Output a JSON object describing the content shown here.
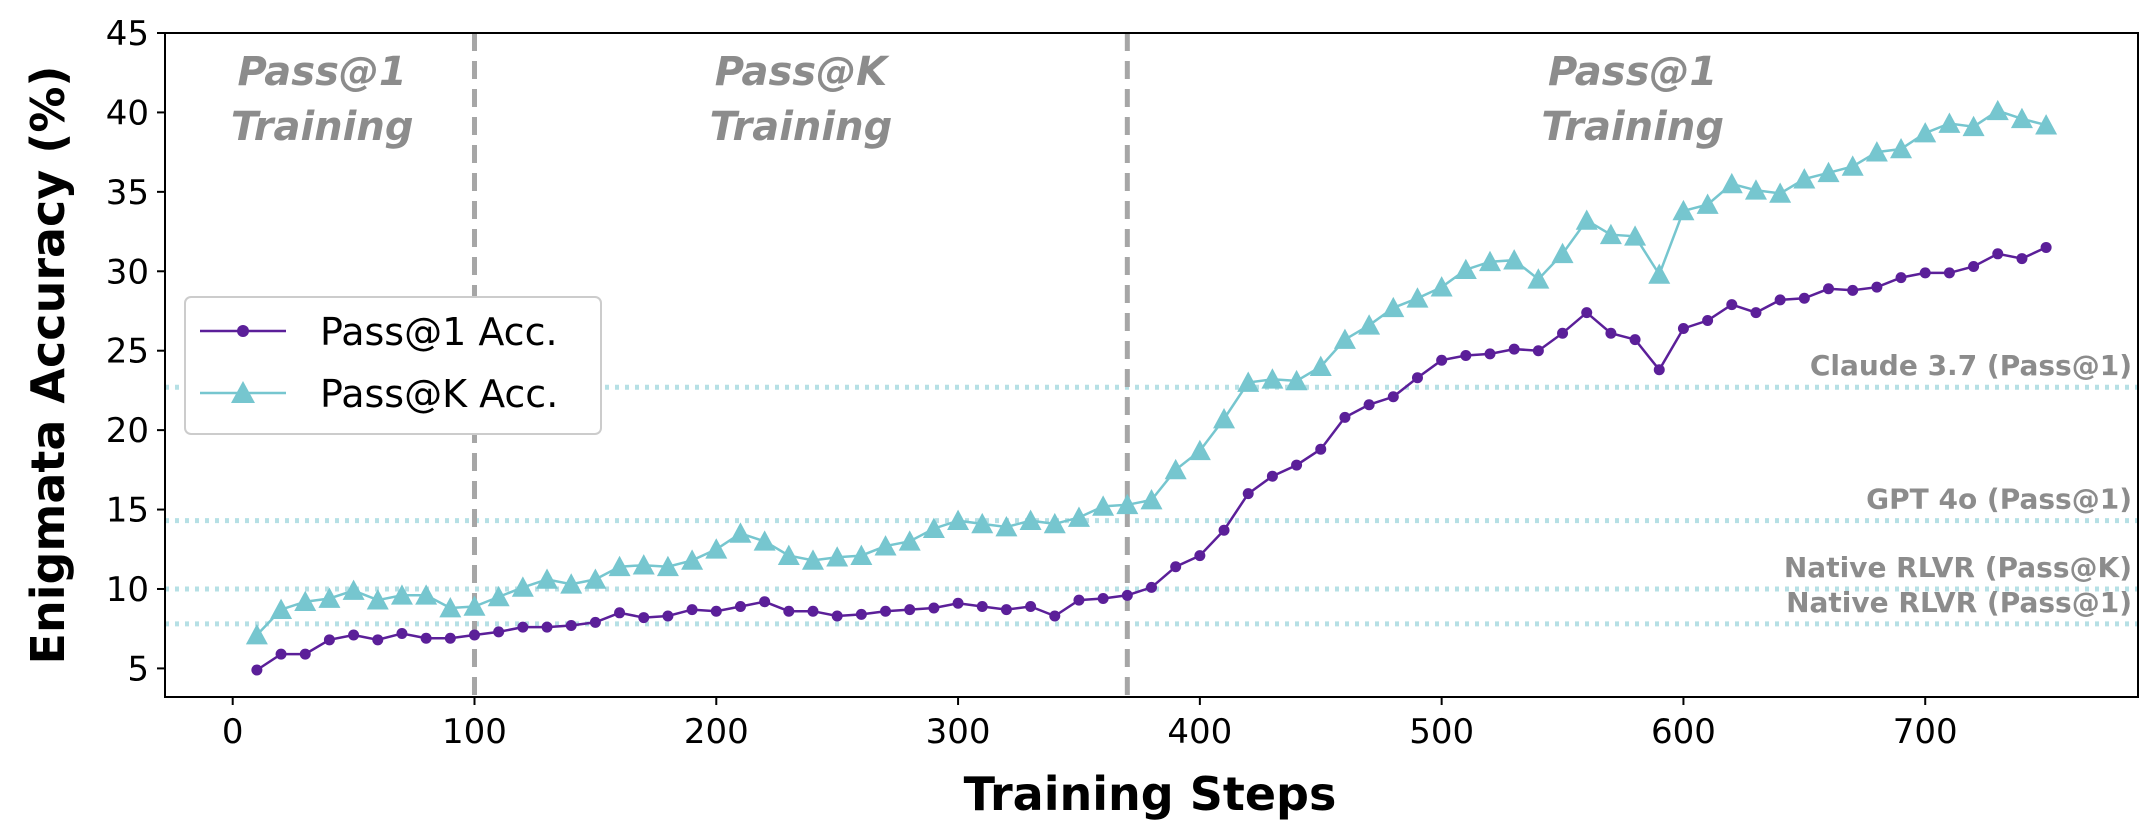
{
  "chart_data": {
    "type": "line",
    "xlabel": "Training Steps",
    "ylabel": "Enigmata Accuracy (%)",
    "xlim": [
      -28,
      788
    ],
    "ylim": [
      3.2,
      45
    ],
    "x_ticks": [
      0,
      100,
      200,
      300,
      400,
      500,
      600,
      700
    ],
    "y_ticks": [
      5,
      10,
      15,
      20,
      25,
      30,
      35,
      40,
      45
    ],
    "grid": false,
    "legend_position": "center-left",
    "phase_dividers": [
      100,
      370
    ],
    "phase_labels": [
      {
        "x": 37,
        "line1": "Pass@1",
        "line2": "Training"
      },
      {
        "x": 235,
        "line1": "Pass@K",
        "line2": "Training"
      },
      {
        "x": 579,
        "line1": "Pass@1",
        "line2": "Training"
      }
    ],
    "reference_lines": [
      {
        "label": "Claude 3.7 (Pass@1)",
        "y": 22.7
      },
      {
        "label": "GPT 4o (Pass@1)",
        "y": 14.3
      },
      {
        "label": "Native RLVR (Pass@K)",
        "y": 10.0
      },
      {
        "label": "Native RLVR (Pass@1)",
        "y": 7.8
      }
    ],
    "x": [
      10,
      20,
      30,
      40,
      50,
      60,
      70,
      80,
      90,
      100,
      110,
      120,
      130,
      140,
      150,
      160,
      170,
      180,
      190,
      200,
      210,
      220,
      230,
      240,
      250,
      260,
      270,
      280,
      290,
      300,
      310,
      320,
      330,
      340,
      350,
      360,
      370,
      380,
      390,
      400,
      410,
      420,
      430,
      440,
      450,
      460,
      470,
      480,
      490,
      500,
      510,
      520,
      530,
      540,
      550,
      560,
      570,
      580,
      590,
      600,
      610,
      620,
      630,
      640,
      650,
      660,
      670,
      680,
      690,
      700,
      710,
      720,
      730,
      740,
      750
    ],
    "series": [
      {
        "name": "Pass@1 Acc.",
        "color": "#5b1f99",
        "marker": "circle",
        "values": [
          4.9,
          5.9,
          5.9,
          6.8,
          7.1,
          6.8,
          7.2,
          6.9,
          6.9,
          7.1,
          7.3,
          7.6,
          7.6,
          7.7,
          7.9,
          8.5,
          8.2,
          8.3,
          8.7,
          8.6,
          8.9,
          9.2,
          8.6,
          8.6,
          8.3,
          8.4,
          8.6,
          8.7,
          8.8,
          9.1,
          8.9,
          8.7,
          8.9,
          8.3,
          9.3,
          9.4,
          9.6,
          10.1,
          11.4,
          12.1,
          13.7,
          16.0,
          17.1,
          17.8,
          18.8,
          20.8,
          21.6,
          22.1,
          23.3,
          24.4,
          24.7,
          24.8,
          25.1,
          25.0,
          26.1,
          27.4,
          26.1,
          25.7,
          23.8,
          26.4,
          26.9,
          27.9,
          27.4,
          28.2,
          28.3,
          28.9,
          28.8,
          29.0,
          29.6,
          29.9,
          29.9,
          30.3,
          31.1,
          30.8,
          31.5
        ]
      },
      {
        "name": "Pass@K Acc.",
        "color": "#76c6cf",
        "marker": "triangle",
        "values": [
          7.1,
          8.7,
          9.2,
          9.4,
          9.9,
          9.3,
          9.6,
          9.6,
          8.8,
          8.9,
          9.5,
          10.1,
          10.6,
          10.3,
          10.6,
          11.4,
          11.5,
          11.4,
          11.8,
          12.5,
          13.5,
          13.0,
          12.1,
          11.8,
          12.0,
          12.1,
          12.7,
          13.0,
          13.8,
          14.3,
          14.1,
          13.9,
          14.3,
          14.1,
          14.5,
          15.2,
          15.3,
          15.6,
          17.5,
          18.7,
          20.7,
          23.0,
          23.2,
          23.1,
          24.0,
          25.7,
          26.6,
          27.7,
          28.3,
          29.0,
          30.1,
          30.6,
          30.7,
          29.5,
          31.1,
          33.2,
          32.3,
          32.2,
          29.8,
          33.8,
          34.2,
          35.5,
          35.1,
          34.9,
          35.8,
          36.2,
          36.6,
          37.5,
          37.7,
          38.7,
          39.3,
          39.1,
          40.1,
          39.6,
          39.2
        ]
      }
    ]
  }
}
